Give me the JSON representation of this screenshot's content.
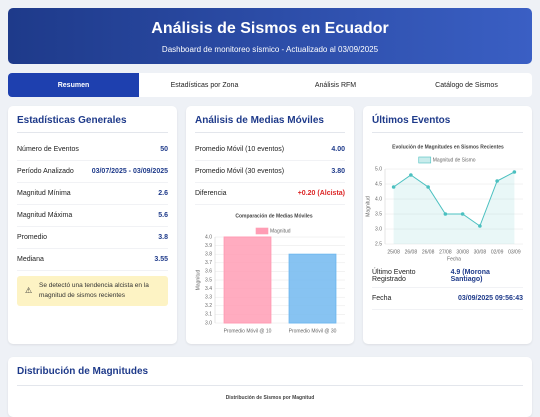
{
  "header": {
    "title": "Análisis de Sismos en Ecuador",
    "subtitle": "Dashboard de monitoreo sísmico - Actualizado al 03/09/2025"
  },
  "tabs": [
    "Resumen",
    "Estadísticas por Zona",
    "Análisis RFM",
    "Catálogo de Sismos"
  ],
  "general_stats": {
    "title": "Estadísticas Generales",
    "rows": [
      {
        "label": "Número de Eventos",
        "value": "50"
      },
      {
        "label": "Período Analizado",
        "value": "03/07/2025 - 03/09/2025"
      },
      {
        "label": "Magnitud Mínima",
        "value": "2.6"
      },
      {
        "label": "Magnitud Máxima",
        "value": "5.6"
      },
      {
        "label": "Promedio",
        "value": "3.8"
      },
      {
        "label": "Mediana",
        "value": "3.55"
      }
    ],
    "alert": "Se detectó una tendencia alcista en la magnitud de sismos recientes"
  },
  "moving_averages": {
    "title": "Análisis de Medias Móviles",
    "rows": [
      {
        "label": "Promedio Móvil (10 eventos)",
        "value": "4.00"
      },
      {
        "label": "Promedio Móvil (30 eventos)",
        "value": "3.80"
      },
      {
        "label": "Diferencia",
        "value": "+0.20 (Alcista)"
      }
    ],
    "chart": {
      "type": "bar",
      "title": "Comparación de Medias Móviles",
      "y_label": "Magnitud",
      "categories": [
        "Promedio Móvil @ 10",
        "Promedio Móvil @ 30"
      ],
      "series": [
        {
          "name": "Magnitud",
          "color": "#ff9db5",
          "values": [
            4,
            3.8
          ]
        }
      ],
      "colors": [
        "#ff9db5",
        "#72b9f0"
      ],
      "ylim": [
        3,
        4
      ],
      "yticks": [
        {
          "value": 3,
          "label": "3.0"
        },
        3.1,
        3.2,
        3.3,
        3.4,
        3.5,
        3.6,
        3.7,
        3.8,
        3.9,
        {
          "value": 4,
          "label": "4.0"
        }
      ],
      "grid": true
    }
  },
  "recent_events": {
    "title": "Últimos Eventos",
    "chart": {
      "type": "line",
      "title": "Evolución de Magnitudes en Sismos Recientes",
      "x_label": "Fecha",
      "y_label": "Magnitud",
      "categories": [
        "25/08",
        "26/08",
        "26/08",
        "27/08",
        "30/08",
        "30/08",
        "02/09",
        "03/09"
      ],
      "series": [
        {
          "name": "Magnitud de Sismo",
          "color": "#4bc0c0",
          "values": [
            4.4,
            4.8,
            4.4,
            3.5,
            3.5,
            3.1,
            4.6,
            4.9
          ]
        }
      ],
      "ylim": [
        2.5,
        5
      ],
      "yticks": [
        2.5,
        {
          "value": 3,
          "label": "3.0"
        },
        3.5,
        {
          "value": 4,
          "label": "4.0"
        },
        4.5,
        {
          "value": 5,
          "label": "5.0"
        }
      ],
      "grid": true
    },
    "rows": [
      {
        "label": "Último Evento Registrado",
        "value": "4.9 (Morona Santiago)"
      },
      {
        "label": "Fecha",
        "value": "03/09/2025 09:56:43"
      }
    ]
  },
  "distribution": {
    "title": "Distribución de Magnitudes",
    "chart_title": "Distribución de Sismos por Magnitud"
  }
}
